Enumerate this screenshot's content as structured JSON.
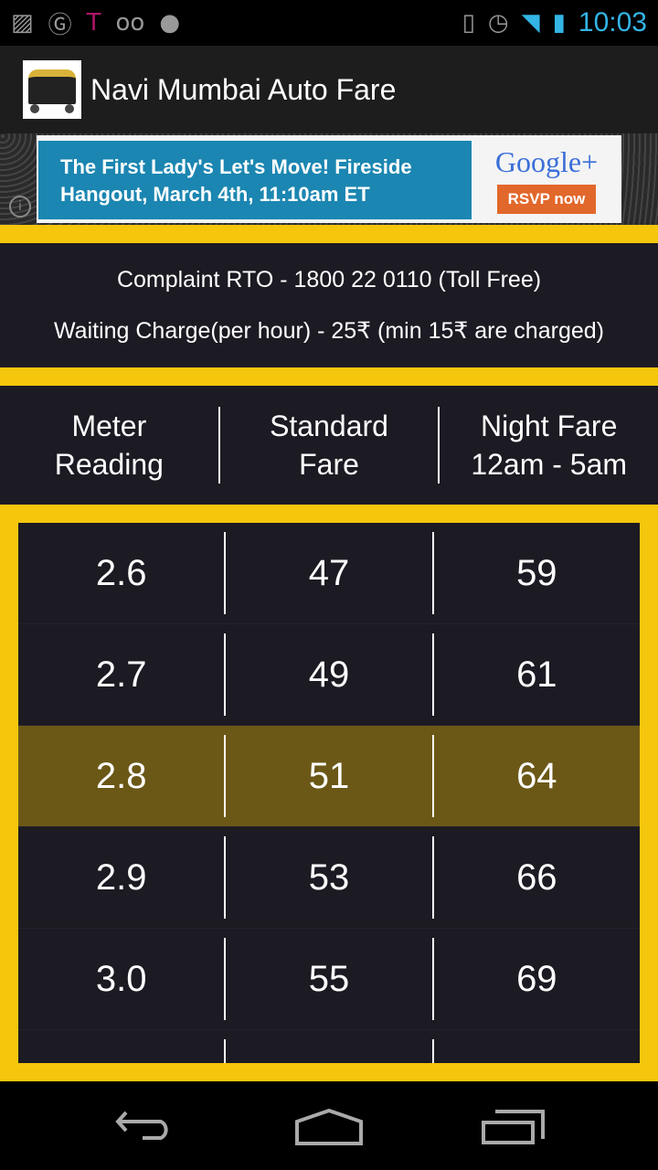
{
  "status_bar": {
    "icons": [
      "image-icon",
      "google-voice-icon",
      "t-mobile-icon",
      "voicemail-icon",
      "android-icon",
      "vibrate-icon",
      "alarm-icon",
      "wifi-icon",
      "signal-icon",
      "battery-charging-icon"
    ],
    "time": "10:03",
    "time_color": "#33b5e5"
  },
  "app": {
    "title": "Navi Mumbai Auto Fare"
  },
  "ad": {
    "line1": "The First Lady's Let's Move! Fireside",
    "line2": "Hangout, March 4th, 11:10am ET",
    "brand": "Google+",
    "cta": "RSVP now",
    "info": "i"
  },
  "info": {
    "complaint": "Complaint RTO - 1800 22 0110 (Toll Free)",
    "waiting": "Waiting Charge(per hour) - 25₹ (min 15₹ are charged)"
  },
  "table": {
    "headers": [
      [
        "Meter",
        "Reading"
      ],
      [
        "Standard",
        "Fare"
      ],
      [
        "Night Fare",
        "12am - 5am"
      ]
    ],
    "rows": [
      [
        "2.6",
        "47",
        "59"
      ],
      [
        "2.7",
        "49",
        "61"
      ],
      [
        "2.8",
        "51",
        "64"
      ],
      [
        "2.9",
        "53",
        "66"
      ],
      [
        "3.0",
        "55",
        "69"
      ],
      [
        "",
        "",
        ""
      ]
    ],
    "highlighted_row": 2
  },
  "colors": {
    "accent": "#f5c60c",
    "panel": "#1c1a22",
    "highlight": "#6b5817"
  },
  "nav": [
    "back-icon",
    "home-icon",
    "recent-apps-icon"
  ]
}
